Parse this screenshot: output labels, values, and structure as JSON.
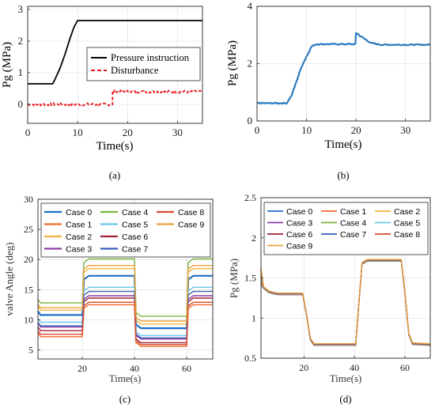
{
  "panels": [
    {
      "caption": "(a)",
      "chart_data": {
        "type": "line",
        "title": "",
        "xlabel": "Time(s)",
        "ylabel": "Pg (MPa)",
        "xlim": [
          0,
          35
        ],
        "ylim": [
          -0.6,
          3.1
        ],
        "xticks": [
          0,
          10,
          20,
          30
        ],
        "yticks": [
          0,
          1,
          2,
          3
        ],
        "grid": true,
        "legend": "right",
        "series": [
          {
            "name": "Pressure instruction",
            "color": "#000000",
            "style": "solid",
            "x": [
              0,
              5,
              5.5,
              6.5,
              7.5,
              8.5,
              9.3,
              10,
              35
            ],
            "y": [
              0.65,
              0.65,
              0.8,
              1.15,
              1.6,
              2.1,
              2.45,
              2.65,
              2.65
            ]
          },
          {
            "name": "Disturbance",
            "color": "#e8151b",
            "style": "dashed",
            "noisy": true,
            "noise": 0.08,
            "x": [
              0,
              17,
              17,
              35
            ],
            "y": [
              0.0,
              0.0,
              0.4,
              0.4
            ]
          }
        ]
      }
    },
    {
      "caption": "(b)",
      "chart_data": {
        "type": "line",
        "title": "",
        "xlabel": "Time(s)",
        "ylabel": "Pg (MPa)",
        "xlim": [
          0,
          35
        ],
        "ylim": [
          0,
          4
        ],
        "xticks": [
          0,
          10,
          20,
          30
        ],
        "yticks": [
          0,
          2,
          4
        ],
        "grid": true,
        "legend": "none",
        "series": [
          {
            "name": "",
            "color": "#2a7bbf",
            "style": "solid",
            "width": 2.2,
            "noisy": true,
            "noise": 0.04,
            "x": [
              0,
              6,
              7,
              9,
              11,
              12,
              19.9,
              20,
              21,
              23,
              25,
              35
            ],
            "y": [
              0.62,
              0.62,
              0.9,
              1.9,
              2.6,
              2.68,
              2.68,
              3.08,
              2.95,
              2.72,
              2.66,
              2.66
            ]
          }
        ]
      }
    },
    {
      "caption": "(c)",
      "chart_data": {
        "type": "line",
        "title": "",
        "xlabel": "Time(s)",
        "ylabel": "valve Angle (deg)",
        "xlim": [
          3,
          70
        ],
        "ylim": [
          3.5,
          30
        ],
        "xticks": [
          20,
          40,
          60
        ],
        "yticks": [
          5,
          10,
          15,
          20,
          25,
          30
        ],
        "grid": true,
        "legend": "top",
        "step_times": [
          20,
          40,
          60
        ],
        "series": [
          {
            "name": "Case 0",
            "color": "#1f6fc6",
            "width": 2.2,
            "levels": [
              10.8,
              17.3,
              8.6,
              17.3
            ]
          },
          {
            "name": "Case 1",
            "color": "#ef6a2e",
            "levels": [
              7.2,
              12.5,
              5.6,
              12.5
            ]
          },
          {
            "name": "Case 2",
            "color": "#f0b43c",
            "levels": [
              11.6,
              18.5,
              9.3,
              18.5
            ]
          },
          {
            "name": "Case 3",
            "color": "#8a3fa3",
            "levels": [
              8.8,
              14.0,
              6.8,
              14.0
            ]
          },
          {
            "name": "Case 4",
            "color": "#77b33c",
            "levels": [
              12.8,
              20.1,
              10.6,
              20.1
            ]
          },
          {
            "name": "Case 5",
            "color": "#6bc7ea",
            "levels": [
              9.6,
              15.4,
              7.4,
              15.4
            ]
          },
          {
            "name": "Case 6",
            "color": "#a0213a",
            "levels": [
              8.2,
              13.6,
              6.2,
              13.6
            ]
          },
          {
            "name": "Case 7",
            "color": "#3a5fb8",
            "levels": [
              9.0,
              14.7,
              7.0,
              14.7
            ]
          },
          {
            "name": "Case 8",
            "color": "#d6492a",
            "levels": [
              7.6,
              12.9,
              5.9,
              12.9
            ]
          },
          {
            "name": "Case 9",
            "color": "#e8a23a",
            "levels": [
              12.0,
              19.0,
              9.8,
              19.0
            ]
          }
        ]
      }
    },
    {
      "caption": "(d)",
      "chart_data": {
        "type": "line",
        "title": "",
        "xlabel": "Time(s)",
        "ylabel": "Pg (MPa)",
        "xlim": [
          3,
          70
        ],
        "ylim": [
          0.5,
          2.5
        ],
        "xticks": [
          20,
          40,
          60
        ],
        "yticks": [
          0.5,
          1,
          1.5,
          2,
          2.5
        ],
        "grid": true,
        "legend": "top",
        "series": [
          {
            "name": "Case 0",
            "color": "#1f6fc6"
          },
          {
            "name": "Case 1",
            "color": "#ef6a2e"
          },
          {
            "name": "Case 2",
            "color": "#f0b43c"
          },
          {
            "name": "Case 3",
            "color": "#8a3fa3"
          },
          {
            "name": "Case 4",
            "color": "#77b33c"
          },
          {
            "name": "Case 5",
            "color": "#6bc7ea"
          },
          {
            "name": "Case 6",
            "color": "#a0213a"
          },
          {
            "name": "Case 7",
            "color": "#3a5fb8"
          },
          {
            "name": "Case 8",
            "color": "#d6492a"
          },
          {
            "name": "Case 9",
            "color": "#e8a23a"
          }
        ],
        "response": {
          "x": [
            3,
            4,
            6,
            8,
            10,
            19.5,
            21,
            22.5,
            24,
            40.5,
            41.5,
            43,
            45,
            58.5,
            60,
            61.5,
            63,
            70
          ],
          "y": [
            1.52,
            1.38,
            1.33,
            1.31,
            1.3,
            1.3,
            1.05,
            0.74,
            0.67,
            0.67,
            1.1,
            1.68,
            1.72,
            1.72,
            1.3,
            0.8,
            0.68,
            0.67
          ]
        }
      }
    }
  ]
}
